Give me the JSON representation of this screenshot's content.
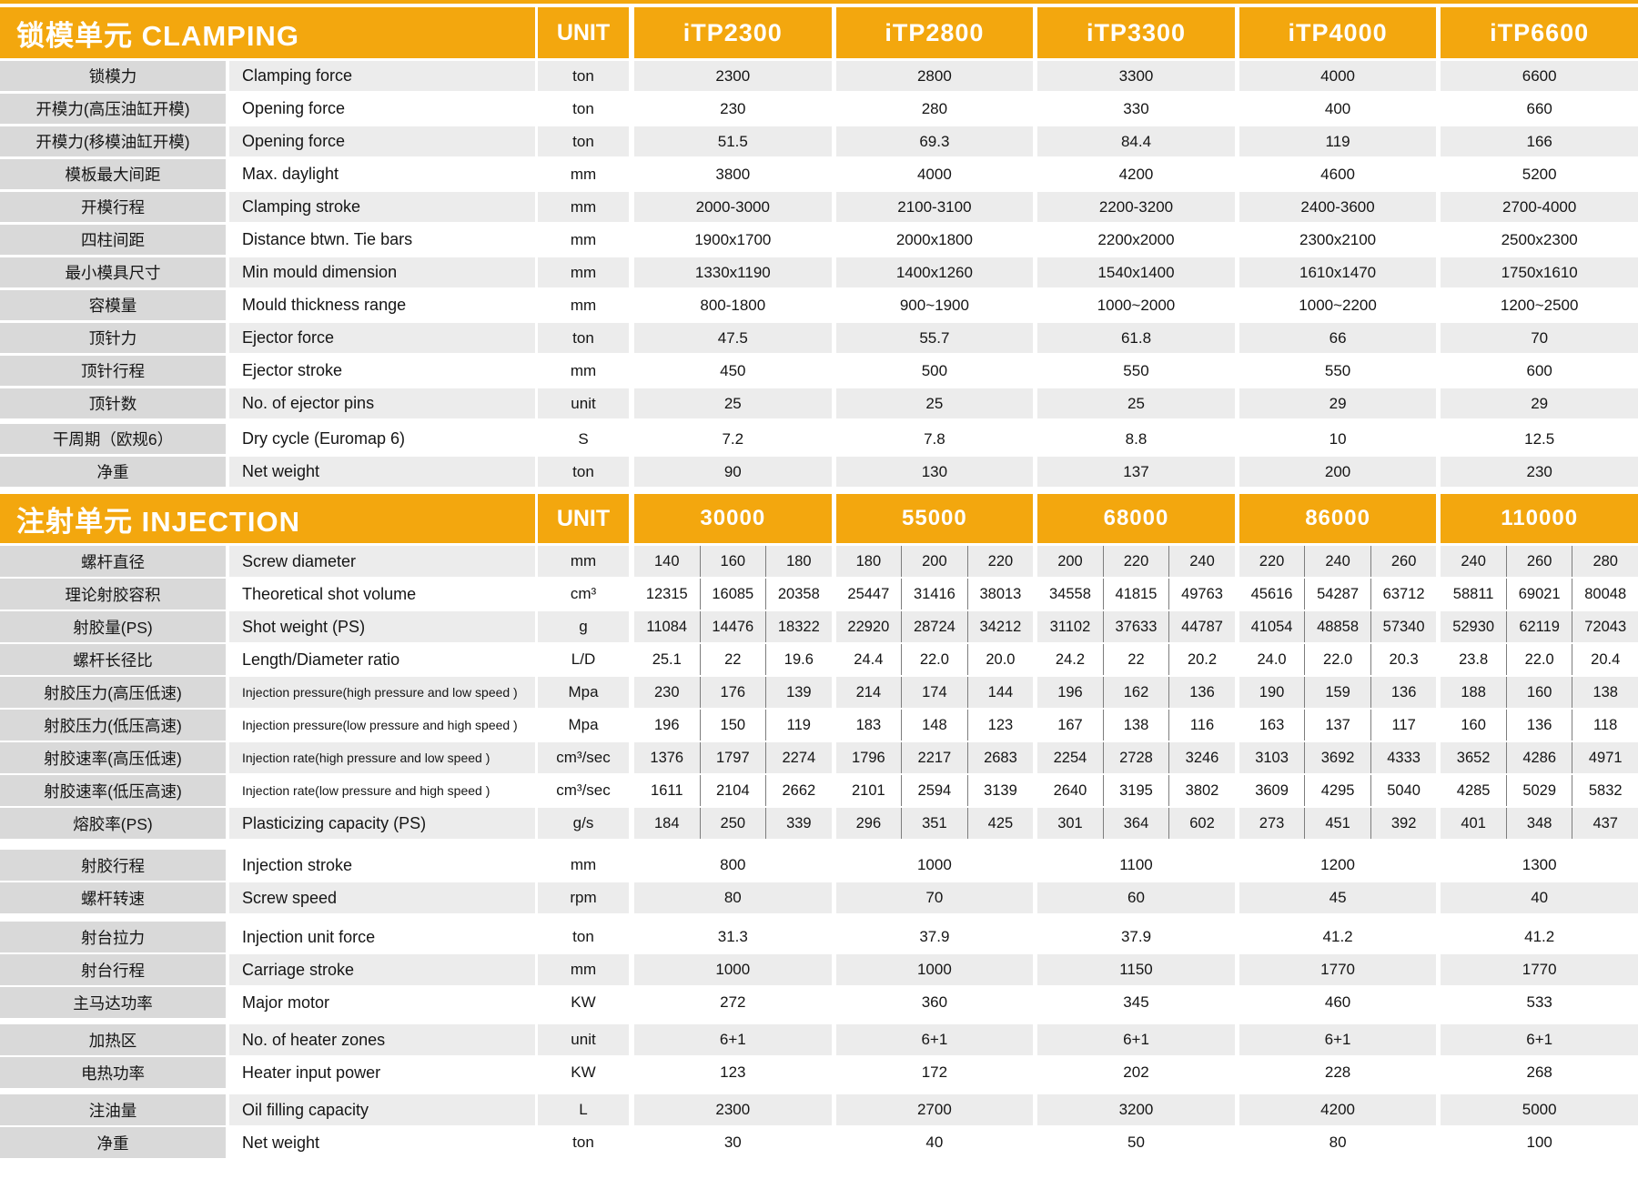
{
  "colors": {
    "accent_orange": "#F3A70E",
    "label_column_gray": "#D9D9D9",
    "row_stripe_gray": "#ECECEC",
    "row_stripe_white": "#FFFFFF",
    "text": "#151515"
  },
  "clamping": {
    "title": "锁模单元 CLAMPING",
    "unit_label": "UNIT",
    "models": [
      "iTP2300",
      "iTP2800",
      "iTP3300",
      "iTP4000",
      "iTP6600"
    ],
    "rows": [
      {
        "cn": "锁模力",
        "en": "Clamping force",
        "unit": "ton",
        "values": [
          "2300",
          "2800",
          "3300",
          "4000",
          "6600"
        ]
      },
      {
        "cn": "开模力(高压油缸开模)",
        "en": "Opening force",
        "unit": "ton",
        "values": [
          "230",
          "280",
          "330",
          "400",
          "660"
        ]
      },
      {
        "cn": "开模力(移模油缸开模)",
        "en": "Opening force",
        "unit": "ton",
        "values": [
          "51.5",
          "69.3",
          "84.4",
          "119",
          "166"
        ]
      },
      {
        "cn": "模板最大间距",
        "en": "Max. daylight",
        "unit": "mm",
        "values": [
          "3800",
          "4000",
          "4200",
          "4600",
          "5200"
        ]
      },
      {
        "cn": "开模行程",
        "en": "Clamping stroke",
        "unit": "mm",
        "values": [
          "2000-3000",
          "2100-3100",
          "2200-3200",
          "2400-3600",
          "2700-4000"
        ]
      },
      {
        "cn": "四柱间距",
        "en": "Distance btwn. Tie bars",
        "unit": "mm",
        "values": [
          "1900x1700",
          "2000x1800",
          "2200x2000",
          "2300x2100",
          "2500x2300"
        ]
      },
      {
        "cn": "最小模具尺寸",
        "en": "Min mould dimension",
        "unit": "mm",
        "values": [
          "1330x1190",
          "1400x1260",
          "1540x1400",
          "1610x1470",
          "1750x1610"
        ]
      },
      {
        "cn": "容模量",
        "en": "Mould thickness range",
        "unit": "mm",
        "values": [
          "800-1800",
          "900~1900",
          "1000~2000",
          "1000~2200",
          "1200~2500"
        ]
      },
      {
        "cn": "顶针力",
        "en": "Ejector force",
        "unit": "ton",
        "values": [
          "47.5",
          "55.7",
          "61.8",
          "66",
          "70"
        ]
      },
      {
        "cn": "顶针行程",
        "en": "Ejector stroke",
        "unit": "mm",
        "values": [
          "450",
          "500",
          "550",
          "550",
          "600"
        ]
      },
      {
        "cn": "顶针数",
        "en": "No. of ejector pins",
        "unit": "unit",
        "values": [
          "25",
          "25",
          "25",
          "29",
          "29"
        ]
      },
      {
        "cn": "干周期（欧规6）",
        "en": "Dry cycle (Euromap 6)",
        "unit": "S",
        "gap": 6,
        "values": [
          "7.2",
          "7.8",
          "8.8",
          "10",
          "12.5"
        ]
      },
      {
        "cn": "净重",
        "en": "Net weight",
        "unit": "ton",
        "values": [
          "90",
          "130",
          "137",
          "200",
          "230"
        ]
      }
    ]
  },
  "injection": {
    "title": "注射单元 INJECTION",
    "unit_label": "UNIT",
    "models": [
      "30000",
      "55000",
      "68000",
      "86000",
      "110000"
    ],
    "rows": [
      {
        "cn": "螺杆直径",
        "en": "Screw diameter",
        "unit": "mm",
        "values": [
          [
            "140",
            "160",
            "180"
          ],
          [
            "180",
            "200",
            "220"
          ],
          [
            "200",
            "220",
            "240"
          ],
          [
            "220",
            "240",
            "260"
          ],
          [
            "240",
            "260",
            "280"
          ]
        ]
      },
      {
        "cn": "理论射胶容积",
        "en": "Theoretical shot volume",
        "unit": "cm³",
        "values": [
          [
            "12315",
            "16085",
            "20358"
          ],
          [
            "25447",
            "31416",
            "38013"
          ],
          [
            "34558",
            "41815",
            "49763"
          ],
          [
            "45616",
            "54287",
            "63712"
          ],
          [
            "58811",
            "69021",
            "80048"
          ]
        ]
      },
      {
        "cn": "射胶量(PS)",
        "en": "Shot weight (PS)",
        "unit": "g",
        "values": [
          [
            "11084",
            "14476",
            "18322"
          ],
          [
            "22920",
            "28724",
            "34212"
          ],
          [
            "31102",
            "37633",
            "44787"
          ],
          [
            "41054",
            "48858",
            "57340"
          ],
          [
            "52930",
            "62119",
            "72043"
          ]
        ]
      },
      {
        "cn": "螺杆长径比",
        "en": "Length/Diameter ratio",
        "unit": "L/D",
        "values": [
          [
            "25.1",
            "22",
            "19.6"
          ],
          [
            "24.4",
            "22.0",
            "20.0"
          ],
          [
            "24.2",
            "22",
            "20.2"
          ],
          [
            "24.0",
            "22.0",
            "20.3"
          ],
          [
            "23.8",
            "22.0",
            "20.4"
          ]
        ]
      },
      {
        "cn": "射胶压力(高压低速)",
        "en": "Injection pressure(high pressure and low speed )",
        "unit": "Mpa",
        "values": [
          [
            "230",
            "176",
            "139"
          ],
          [
            "214",
            "174",
            "144"
          ],
          [
            "196",
            "162",
            "136"
          ],
          [
            "190",
            "159",
            "136"
          ],
          [
            "188",
            "160",
            "138"
          ]
        ]
      },
      {
        "cn": "射胶压力(低压高速)",
        "en": "Injection pressure(low pressure and high speed )",
        "unit": "Mpa",
        "values": [
          [
            "196",
            "150",
            "119"
          ],
          [
            "183",
            "148",
            "123"
          ],
          [
            "167",
            "138",
            "116"
          ],
          [
            "163",
            "137",
            "117"
          ],
          [
            "160",
            "136",
            "118"
          ]
        ]
      },
      {
        "cn": "射胶速率(高压低速)",
        "en": "Injection rate(high pressure and low speed )",
        "unit": "cm³/sec",
        "values": [
          [
            "1376",
            "1797",
            "2274"
          ],
          [
            "1796",
            "2217",
            "2683"
          ],
          [
            "2254",
            "2728",
            "3246"
          ],
          [
            "3103",
            "3692",
            "4333"
          ],
          [
            "3652",
            "4286",
            "4971"
          ]
        ]
      },
      {
        "cn": "射胶速率(低压高速)",
        "en": "Injection rate(low pressure and high speed )",
        "unit": "cm³/sec",
        "values": [
          [
            "1611",
            "2104",
            "2662"
          ],
          [
            "2101",
            "2594",
            "3139"
          ],
          [
            "2640",
            "3195",
            "3802"
          ],
          [
            "3609",
            "4295",
            "5040"
          ],
          [
            "4285",
            "5029",
            "5832"
          ]
        ]
      },
      {
        "cn": "熔胶率(PS)",
        "en": "Plasticizing capacity (PS)",
        "unit": "g/s",
        "values": [
          [
            "184",
            "250",
            "339"
          ],
          [
            "296",
            "351",
            "425"
          ],
          [
            "301",
            "364",
            "602"
          ],
          [
            "273",
            "451",
            "392"
          ],
          [
            "401",
            "348",
            "437"
          ]
        ]
      },
      {
        "cn": "射胶行程",
        "en": "Injection stroke",
        "unit": "mm",
        "gap": 12,
        "values": [
          "800",
          "1000",
          "1100",
          "1200",
          "1300"
        ]
      },
      {
        "cn": "螺杆转速",
        "en": "Screw speed",
        "unit": "rpm",
        "values": [
          "80",
          "70",
          "60",
          "45",
          "40"
        ]
      },
      {
        "cn": "射台拉力",
        "en": "Injection unit force",
        "unit": "ton",
        "gap": 9,
        "values": [
          "31.3",
          "37.9",
          "37.9",
          "41.2",
          "41.2"
        ]
      },
      {
        "cn": "射台行程",
        "en": "Carriage stroke",
        "unit": "mm",
        "values": [
          "1000",
          "1000",
          "1150",
          "1770",
          "1770"
        ]
      },
      {
        "cn": "主马达功率",
        "en": "Major motor",
        "unit": "KW",
        "values": [
          "272",
          "360",
          "345",
          "460",
          "533"
        ]
      },
      {
        "cn": "加热区",
        "en": "No. of heater zones",
        "unit": "unit",
        "gap": 7,
        "values": [
          "6+1",
          "6+1",
          "6+1",
          "6+1",
          "6+1"
        ]
      },
      {
        "cn": "电热功率",
        "en": "Heater input power",
        "unit": "KW",
        "values": [
          "123",
          "172",
          "202",
          "228",
          "268"
        ]
      },
      {
        "cn": "注油量",
        "en": "Oil filling capacity",
        "unit": "L",
        "gap": 7,
        "values": [
          "2300",
          "2700",
          "3200",
          "4200",
          "5000"
        ]
      },
      {
        "cn": "净重",
        "en": "Net weight",
        "unit": "ton",
        "values": [
          "30",
          "40",
          "50",
          "80",
          "100"
        ]
      }
    ]
  }
}
